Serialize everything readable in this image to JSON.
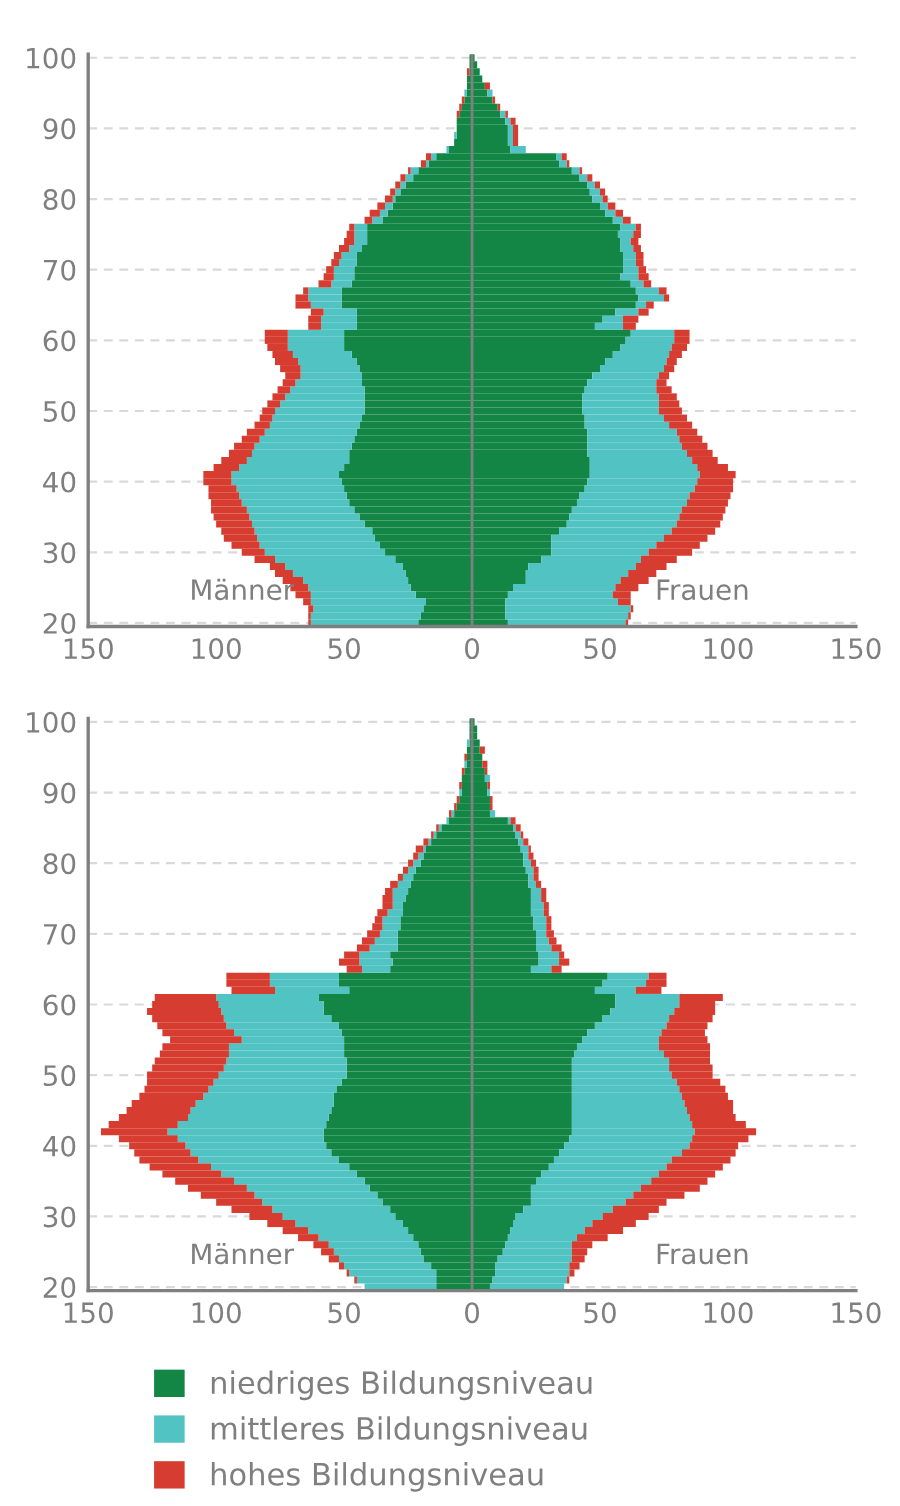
{
  "chart_data": [
    {
      "type": "bar",
      "orientation": "horizontal",
      "stacked": true,
      "grid": "y",
      "legend": false,
      "categories": [
        "100",
        null,
        null,
        null,
        null,
        null,
        null,
        null,
        null,
        null,
        "90",
        null,
        null,
        null,
        null,
        null,
        null,
        null,
        null,
        null,
        "80",
        null,
        null,
        null,
        null,
        null,
        null,
        null,
        null,
        null,
        "70",
        null,
        null,
        null,
        null,
        null,
        null,
        null,
        null,
        null,
        "60",
        null,
        null,
        null,
        null,
        null,
        null,
        null,
        null,
        null,
        "50",
        null,
        null,
        null,
        null,
        null,
        null,
        null,
        null,
        null,
        "40",
        null,
        null,
        null,
        null,
        null,
        null,
        null,
        null,
        null,
        "30",
        null,
        null,
        null,
        null,
        null,
        null,
        null,
        null,
        null,
        "20"
      ],
      "xlim": [
        -150,
        150
      ],
      "xticks": [
        {
          "value": -150,
          "label": "150"
        },
        {
          "value": -100,
          "label": "100"
        },
        {
          "value": -50,
          "label": "50"
        },
        0,
        50,
        100,
        150
      ],
      "ref_lines": [
        {
          "axis": "x",
          "value": 0,
          "color": "#808080"
        }
      ],
      "annotations": [
        "Männer",
        "Frauen"
      ],
      "series": [
        {
          "color": "#138645",
          "values": [
            -1,
            -1,
            -1,
            -2,
            -2,
            -2,
            -3,
            -4,
            -5,
            -6,
            -6,
            -6,
            -7,
            -9,
            -14,
            -17,
            -21,
            -23,
            -26,
            -28,
            -30,
            -31,
            -33,
            -35,
            -41,
            -41,
            -41,
            -43,
            -45,
            -45,
            -46,
            -46,
            -47,
            -51,
            -51,
            -51,
            -45,
            -45,
            -45,
            -50,
            -50,
            -50,
            -47,
            -45,
            -44,
            -43,
            -43,
            -42,
            -42,
            -42,
            -42,
            -43,
            -44,
            -45,
            -46,
            -47,
            -48,
            -48,
            -50,
            -52,
            -51,
            -50,
            -49,
            -48,
            -46,
            -44,
            -42,
            -39,
            -38,
            -36,
            -34,
            -30,
            -27,
            -26,
            -25,
            -24,
            -22,
            -18,
            -19,
            -20,
            -21
          ]
        },
        {
          "color": "#52c3c3",
          "values": [
            0,
            0,
            0,
            0,
            0,
            -1,
            0,
            0,
            0,
            0,
            0,
            -1,
            0,
            -1,
            -2,
            -1,
            -3,
            -3,
            -2,
            -2,
            -1,
            -3,
            -3,
            -4,
            -5,
            -5,
            -5,
            -5,
            -6,
            -7,
            -8,
            -8,
            -8,
            -13,
            -13,
            -12,
            -13,
            -14,
            -14,
            -22,
            -22,
            -22,
            -23,
            -23,
            -23,
            -24,
            -26,
            -29,
            -31,
            -33,
            -35,
            -35,
            -35,
            -36,
            -37,
            -38,
            -38,
            -40,
            -41,
            -42,
            -43,
            -42,
            -42,
            -42,
            -42,
            -43,
            -44,
            -46,
            -46,
            -47,
            -47,
            -47,
            -46,
            -44,
            -41,
            -40,
            -41,
            -45,
            -43,
            -43,
            -42
          ]
        },
        {
          "color": "#d63c2f",
          "values": [
            0,
            0,
            -1,
            0,
            0,
            0,
            -1,
            -1,
            -1,
            0,
            0,
            0,
            0,
            0,
            -2,
            -2,
            -1,
            -2,
            -2,
            -2,
            -3,
            -3,
            -4,
            -3,
            -2,
            -3,
            -4,
            -4,
            -3,
            -3,
            -3,
            -4,
            -5,
            -2,
            -5,
            -6,
            -5,
            -5,
            -5,
            -9,
            -9,
            -8,
            -8,
            -9,
            -8,
            -6,
            -5,
            -5,
            -5,
            -5,
            -5,
            -5,
            -6,
            -7,
            -7,
            -8,
            -9,
            -10,
            -10,
            -11,
            -11,
            -11,
            -12,
            -12,
            -14,
            -14,
            -14,
            -13,
            -13,
            -11,
            -9,
            -8,
            -6,
            -7,
            -8,
            -7,
            -6,
            -3,
            -2,
            -1,
            -1
          ]
        },
        {
          "color": "#138645",
          "values": [
            1,
            2,
            3,
            4,
            5,
            6,
            8,
            10,
            11,
            13,
            14,
            14,
            14,
            15,
            33,
            34,
            39,
            42,
            45,
            46,
            47,
            50,
            52,
            55,
            58,
            57,
            58,
            58,
            59,
            59,
            59,
            58,
            62,
            64,
            65,
            64,
            56,
            51,
            48,
            62,
            60,
            58,
            55,
            52,
            50,
            47,
            45,
            44,
            43,
            43,
            43,
            44,
            44,
            45,
            45,
            45,
            45,
            46,
            46,
            46,
            45,
            44,
            42,
            41,
            39,
            38,
            37,
            34,
            31,
            31,
            31,
            27,
            22,
            21,
            21,
            16,
            14,
            13,
            13,
            13,
            14
          ]
        },
        {
          "color": "#52c3c3",
          "values": [
            0,
            0,
            0,
            0,
            0,
            2,
            0,
            0,
            2,
            2,
            2,
            2,
            2,
            6,
            2,
            3,
            3,
            3,
            3,
            4,
            4,
            3,
            4,
            4,
            6,
            6,
            4,
            5,
            5,
            5,
            6,
            7,
            5,
            9,
            10,
            4,
            9,
            8,
            11,
            17,
            19,
            20,
            22,
            24,
            25,
            26,
            27,
            28,
            30,
            30,
            30,
            31,
            33,
            35,
            36,
            37,
            39,
            40,
            42,
            43,
            43,
            43,
            43,
            43,
            43,
            43,
            43,
            44,
            44,
            41,
            38,
            39,
            42,
            40,
            37,
            40,
            41,
            44,
            49,
            48,
            46
          ]
        },
        {
          "color": "#d63c2f",
          "values": [
            0,
            0,
            0,
            0,
            2,
            0,
            1,
            1,
            1,
            2,
            2,
            2,
            2,
            0,
            2,
            1,
            1,
            2,
            2,
            2,
            2,
            3,
            3,
            3,
            2,
            3,
            3,
            3,
            3,
            3,
            3,
            4,
            3,
            3,
            2,
            3,
            4,
            6,
            5,
            6,
            6,
            6,
            5,
            4,
            4,
            4,
            4,
            6,
            7,
            8,
            9,
            9,
            9,
            8,
            9,
            10,
            10,
            10,
            12,
            14,
            14,
            15,
            16,
            16,
            17,
            17,
            17,
            17,
            17,
            17,
            17,
            14,
            12,
            11,
            11,
            9,
            7,
            5,
            1,
            1,
            1
          ]
        }
      ]
    },
    {
      "type": "bar",
      "orientation": "horizontal",
      "stacked": true,
      "grid": "y",
      "legend": "bottom",
      "categories": [
        "100",
        null,
        null,
        null,
        null,
        null,
        null,
        null,
        null,
        null,
        "90",
        null,
        null,
        null,
        null,
        null,
        null,
        null,
        null,
        null,
        "80",
        null,
        null,
        null,
        null,
        null,
        null,
        null,
        null,
        null,
        "70",
        null,
        null,
        null,
        null,
        null,
        null,
        null,
        null,
        null,
        "60",
        null,
        null,
        null,
        null,
        null,
        null,
        null,
        null,
        null,
        "50",
        null,
        null,
        null,
        null,
        null,
        null,
        null,
        null,
        null,
        "40",
        null,
        null,
        null,
        null,
        null,
        null,
        null,
        null,
        null,
        "30",
        null,
        null,
        null,
        null,
        null,
        null,
        null,
        null,
        null,
        "20"
      ],
      "xlim": [
        -150,
        150
      ],
      "xticks": [
        {
          "value": -150,
          "label": "150"
        },
        {
          "value": -100,
          "label": "100"
        },
        {
          "value": -50,
          "label": "50"
        },
        0,
        50,
        100,
        150
      ],
      "ref_lines": [
        {
          "axis": "x",
          "value": 0,
          "color": "#808080"
        }
      ],
      "annotations": [
        "Männer",
        "Frauen"
      ],
      "series": [
        {
          "color": "#138645",
          "values": [
            -1,
            -1,
            -1,
            -1,
            -2,
            -2,
            -2,
            -3,
            -4,
            -4,
            -4,
            -5,
            -6,
            -7,
            -9,
            -12,
            -14,
            -16,
            -18,
            -19,
            -20,
            -22,
            -23,
            -24,
            -25,
            -26,
            -27,
            -27,
            -28,
            -28,
            -29,
            -29,
            -29,
            -32,
            -31,
            -32,
            -52,
            -52,
            -48,
            -60,
            -58,
            -58,
            -55,
            -52,
            -51,
            -50,
            -50,
            -50,
            -49,
            -49,
            -49,
            -51,
            -53,
            -54,
            -54,
            -55,
            -56,
            -57,
            -58,
            -58,
            -57,
            -55,
            -52,
            -48,
            -45,
            -42,
            -40,
            -37,
            -35,
            -32,
            -30,
            -27,
            -25,
            -23,
            -21,
            -20,
            -19,
            -16,
            -14,
            -14,
            -14
          ]
        },
        {
          "color": "#52c3c3",
          "values": [
            0,
            0,
            0,
            -1,
            0,
            0,
            -1,
            0,
            0,
            0,
            -1,
            0,
            0,
            -1,
            -1,
            -1,
            -1,
            -1,
            -1,
            -2,
            -3,
            -3,
            -4,
            -5,
            -6,
            -5,
            -4,
            -6,
            -7,
            -7,
            -7,
            -9,
            -11,
            -12,
            -13,
            -11,
            -27,
            -27,
            -29,
            -40,
            -41,
            -40,
            -42,
            -44,
            -42,
            -40,
            -45,
            -45,
            -47,
            -48,
            -50,
            -50,
            -50,
            -51,
            -54,
            -55,
            -55,
            -58,
            -61,
            -57,
            -55,
            -55,
            -55,
            -54,
            -53,
            -51,
            -48,
            -48,
            -47,
            -46,
            -44,
            -42,
            -39,
            -37,
            -35,
            -34,
            -33,
            -34,
            -34,
            -31,
            -28
          ]
        },
        {
          "color": "#d63c2f",
          "values": [
            0,
            0,
            0,
            0,
            0,
            -1,
            0,
            -1,
            0,
            -1,
            0,
            -1,
            -1,
            -1,
            0,
            -1,
            -1,
            -2,
            -3,
            -2,
            -2,
            -2,
            -2,
            -3,
            -3,
            -4,
            -4,
            -4,
            -3,
            -4,
            -5,
            -5,
            -5,
            -6,
            -8,
            -6,
            -17,
            -17,
            -17,
            -24,
            -26,
            -29,
            -28,
            -27,
            -28,
            -28,
            -26,
            -27,
            -28,
            -28,
            -28,
            -26,
            -25,
            -25,
            -25,
            -25,
            -27,
            -27,
            -26,
            -23,
            -22,
            -22,
            -23,
            -24,
            -23,
            -23,
            -23,
            -21,
            -18,
            -16,
            -13,
            -11,
            -10,
            -8,
            -6,
            -5,
            -4,
            -2,
            -1,
            -1,
            0
          ]
        },
        {
          "name": "niedriges Bildungsniveau",
          "color": "#138645",
          "values": [
            1,
            2,
            2,
            3,
            3,
            4,
            4,
            5,
            5,
            6,
            6,
            7,
            7,
            7,
            14,
            16,
            17,
            18,
            19,
            20,
            20,
            21,
            22,
            22,
            23,
            23,
            23,
            23,
            24,
            24,
            25,
            25,
            25,
            26,
            26,
            23,
            53,
            51,
            48,
            56,
            56,
            54,
            51,
            48,
            45,
            43,
            41,
            40,
            39,
            39,
            39,
            39,
            39,
            39,
            39,
            39,
            39,
            39,
            39,
            38,
            36,
            34,
            32,
            30,
            27,
            25,
            23,
            23,
            23,
            20,
            17,
            16,
            15,
            14,
            13,
            12,
            10,
            9,
            9,
            8,
            7
          ]
        },
        {
          "name": "mittleres Bildungsniveau",
          "color": "#52c3c3",
          "values": [
            0,
            0,
            0,
            0,
            0,
            0,
            0,
            0,
            2,
            0,
            1,
            0,
            0,
            2,
            1,
            1,
            2,
            2,
            3,
            2,
            3,
            3,
            2,
            3,
            4,
            4,
            5,
            5,
            5,
            5,
            4,
            5,
            6,
            8,
            8,
            8,
            16,
            17,
            16,
            25,
            25,
            25,
            26,
            28,
            29,
            30,
            32,
            35,
            38,
            38,
            39,
            41,
            42,
            43,
            44,
            45,
            46,
            47,
            48,
            48,
            49,
            48,
            46,
            46,
            46,
            45,
            43,
            40,
            37,
            35,
            34,
            31,
            29,
            27,
            26,
            27,
            29,
            29,
            29,
            29,
            29
          ]
        },
        {
          "name": "hohes Bildungsniveau",
          "color": "#d63c2f",
          "values": [
            0,
            0,
            0,
            0,
            2,
            0,
            2,
            1,
            0,
            1,
            0,
            1,
            1,
            0,
            2,
            2,
            1,
            2,
            1,
            2,
            2,
            2,
            2,
            2,
            2,
            2,
            2,
            2,
            2,
            2,
            3,
            3,
            4,
            2,
            4,
            4,
            7,
            8,
            10,
            17,
            14,
            16,
            17,
            16,
            17,
            19,
            20,
            18,
            16,
            17,
            16,
            17,
            18,
            18,
            19,
            18,
            18,
            21,
            24,
            22,
            19,
            21,
            23,
            22,
            22,
            22,
            23,
            20,
            16,
            18,
            18,
            17,
            15,
            12,
            8,
            6,
            5,
            4,
            2,
            1,
            0
          ]
        }
      ]
    }
  ]
}
